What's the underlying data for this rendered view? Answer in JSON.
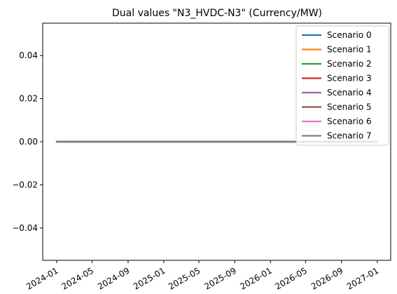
{
  "chart_data": {
    "type": "line",
    "title": "Dual values \"N3_HVDC-N3\" (Currency/MW)",
    "xlabel": "",
    "ylabel": "",
    "x_type": "date",
    "x": [
      "2024-01-01",
      "2026-12-31"
    ],
    "x_ticks": [
      "2024-01",
      "2024-05",
      "2024-09",
      "2025-01",
      "2025-05",
      "2025-09",
      "2026-01",
      "2026-05",
      "2026-09",
      "2027-01"
    ],
    "xlim": [
      "2023-11-14",
      "2027-02-16"
    ],
    "ylim": [
      -0.055,
      0.055
    ],
    "y_ticks": [
      0.04,
      0.02,
      0.0,
      -0.02,
      -0.04
    ],
    "y_tick_labels": [
      "0.04",
      "0.02",
      "0.00",
      "−0.02",
      "−0.04"
    ],
    "grid": false,
    "legend_position": "top-right",
    "series": [
      {
        "name": "Scenario 0",
        "color": "#1f77b4",
        "values": [
          0,
          0
        ]
      },
      {
        "name": "Scenario 1",
        "color": "#ff7f0e",
        "values": [
          0,
          0
        ]
      },
      {
        "name": "Scenario 2",
        "color": "#2ca02c",
        "values": [
          0,
          0
        ]
      },
      {
        "name": "Scenario 3",
        "color": "#d62728",
        "values": [
          0,
          0
        ]
      },
      {
        "name": "Scenario 4",
        "color": "#9467bd",
        "values": [
          0,
          0
        ]
      },
      {
        "name": "Scenario 5",
        "color": "#8c564b",
        "values": [
          0,
          0
        ]
      },
      {
        "name": "Scenario 6",
        "color": "#e377c2",
        "values": [
          0,
          0
        ]
      },
      {
        "name": "Scenario 7",
        "color": "#7f7f7f",
        "values": [
          0,
          0
        ]
      }
    ]
  }
}
